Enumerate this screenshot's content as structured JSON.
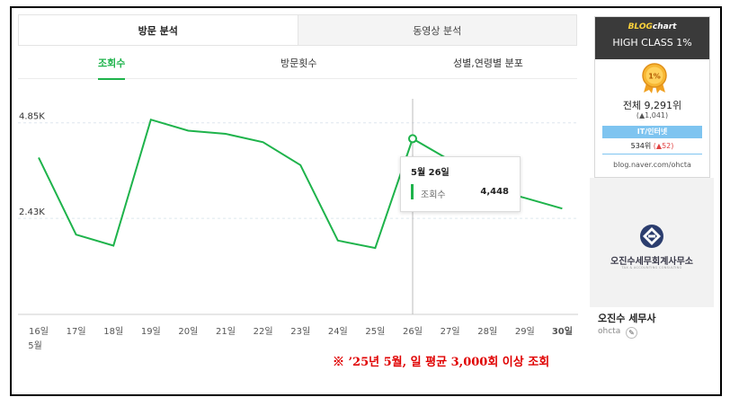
{
  "tabs": {
    "main": [
      {
        "label": "방문 분석"
      },
      {
        "label": "동영상 분석"
      }
    ],
    "sub": [
      {
        "label": "조회수"
      },
      {
        "label": "방문횟수"
      },
      {
        "label": "성별,연령별 분포"
      }
    ]
  },
  "chart_data": {
    "type": "line",
    "x": [
      "16일",
      "17일",
      "18일",
      "19일",
      "20일",
      "21일",
      "22일",
      "23일",
      "24일",
      "25일",
      "26일",
      "27일",
      "28일",
      "29일",
      "30일"
    ],
    "xlabel_month": "5월",
    "y_ticks": [
      "4.85K",
      "2.43K"
    ],
    "series": [
      {
        "name": "조회수",
        "values": [
          3970,
          2020,
          1740,
          4930,
          4650,
          4570,
          4360,
          3780,
          1870,
          1680,
          4448,
          3900,
          3200,
          2950,
          2680
        ]
      }
    ],
    "ylim": [
      0,
      5640
    ],
    "grid": true,
    "line_color": "#1eb34b",
    "highlight_index": 10
  },
  "tooltip": {
    "date": "5월 26일",
    "series_name": "조회수",
    "value": "4,448"
  },
  "note": "※ ’25년 5월, 일 평균 3,000회 이상 조회",
  "badge": {
    "logo_a": "BLOG",
    "logo_b": "chart",
    "class": "HIGH CLASS 1%",
    "medal_text": "1%",
    "rank": "전체 9,291위",
    "rank_change": "(▲1,041)",
    "category": "IT/인터넷",
    "category_rank": "534위",
    "category_change": "(▲52)",
    "url": "blog.naver.com/ohcta"
  },
  "logo": {
    "name": "오진수세무회계사무소",
    "sub": "TAX & ACCOUNTING CONSULTING"
  },
  "profile": {
    "name": "오진수 세무사",
    "id": "ohcta"
  },
  "colors": {
    "accent": "#1eb34b",
    "note": "#e00000",
    "badge_head": "#3a3a3a",
    "badge_cat": "#7ec4f0"
  }
}
